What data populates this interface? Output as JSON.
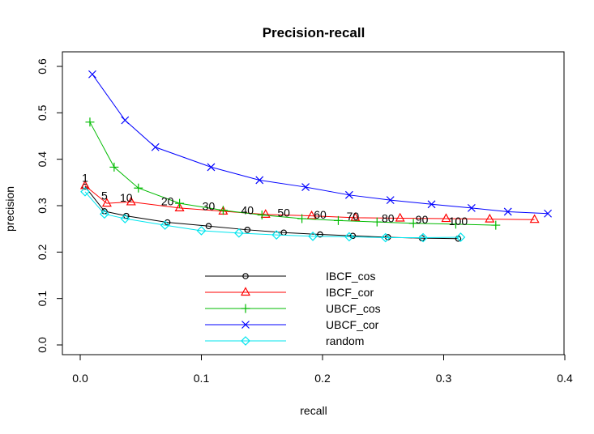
{
  "chart_data": {
    "type": "line",
    "title": "Precision-recall",
    "xlabel": "recall",
    "ylabel": "precision",
    "xlim": [
      0,
      0.4
    ],
    "ylim": [
      0,
      0.6
    ],
    "xticks": [
      "0.0",
      "0.1",
      "0.2",
      "0.3",
      "0.4"
    ],
    "yticks": [
      "0.0",
      "0.1",
      "0.2",
      "0.3",
      "0.4",
      "0.5",
      "0.6"
    ],
    "point_labels": [
      {
        "text": "1",
        "x": 0.004,
        "y": 0.341
      },
      {
        "text": "5",
        "x": 0.02,
        "y": 0.303
      },
      {
        "text": "10",
        "x": 0.038,
        "y": 0.298
      },
      {
        "text": "20",
        "x": 0.072,
        "y": 0.29
      },
      {
        "text": "30",
        "x": 0.106,
        "y": 0.28
      },
      {
        "text": "40",
        "x": 0.138,
        "y": 0.271
      },
      {
        "text": "50",
        "x": 0.168,
        "y": 0.266
      },
      {
        "text": "60",
        "x": 0.198,
        "y": 0.262
      },
      {
        "text": "70",
        "x": 0.225,
        "y": 0.258
      },
      {
        "text": "80",
        "x": 0.254,
        "y": 0.254
      },
      {
        "text": "90",
        "x": 0.282,
        "y": 0.251
      },
      {
        "text": "100",
        "x": 0.312,
        "y": 0.248
      }
    ],
    "series": [
      {
        "name": "IBCF_cos",
        "color": "#000000",
        "marker": "circle",
        "x": [
          0.004,
          0.02,
          0.038,
          0.072,
          0.106,
          0.138,
          0.168,
          0.198,
          0.225,
          0.254,
          0.282,
          0.312
        ],
        "y": [
          0.341,
          0.288,
          0.278,
          0.264,
          0.256,
          0.248,
          0.242,
          0.238,
          0.235,
          0.232,
          0.23,
          0.229
        ]
      },
      {
        "name": "IBCF_cor",
        "color": "#ff0000",
        "marker": "triangle",
        "x": [
          0.004,
          0.022,
          0.042,
          0.082,
          0.118,
          0.153,
          0.191,
          0.227,
          0.264,
          0.302,
          0.338,
          0.375
        ],
        "y": [
          0.343,
          0.305,
          0.308,
          0.295,
          0.288,
          0.281,
          0.278,
          0.274,
          0.273,
          0.272,
          0.271,
          0.27
        ]
      },
      {
        "name": "UBCF_cos",
        "color": "#00bb00",
        "marker": "plus",
        "x": [
          0.008,
          0.028,
          0.048,
          0.082,
          0.118,
          0.15,
          0.183,
          0.213,
          0.245,
          0.275,
          0.31,
          0.343
        ],
        "y": [
          0.48,
          0.383,
          0.338,
          0.305,
          0.29,
          0.28,
          0.272,
          0.268,
          0.265,
          0.262,
          0.26,
          0.258
        ]
      },
      {
        "name": "UBCF_cor",
        "color": "#0000ff",
        "marker": "cross",
        "x": [
          0.01,
          0.037,
          0.062,
          0.108,
          0.148,
          0.186,
          0.222,
          0.256,
          0.29,
          0.323,
          0.353,
          0.386
        ],
        "y": [
          0.583,
          0.484,
          0.426,
          0.383,
          0.355,
          0.34,
          0.323,
          0.312,
          0.303,
          0.295,
          0.287,
          0.283
        ]
      },
      {
        "name": "random",
        "color": "#00e5ee",
        "marker": "diamond",
        "x": [
          0.004,
          0.02,
          0.037,
          0.07,
          0.1,
          0.131,
          0.162,
          0.192,
          0.222,
          0.252,
          0.283,
          0.314
        ],
        "y": [
          0.33,
          0.282,
          0.272,
          0.258,
          0.246,
          0.241,
          0.237,
          0.234,
          0.233,
          0.231,
          0.231,
          0.232
        ]
      }
    ],
    "legend": {
      "position": "bottom-center",
      "box": false
    }
  }
}
